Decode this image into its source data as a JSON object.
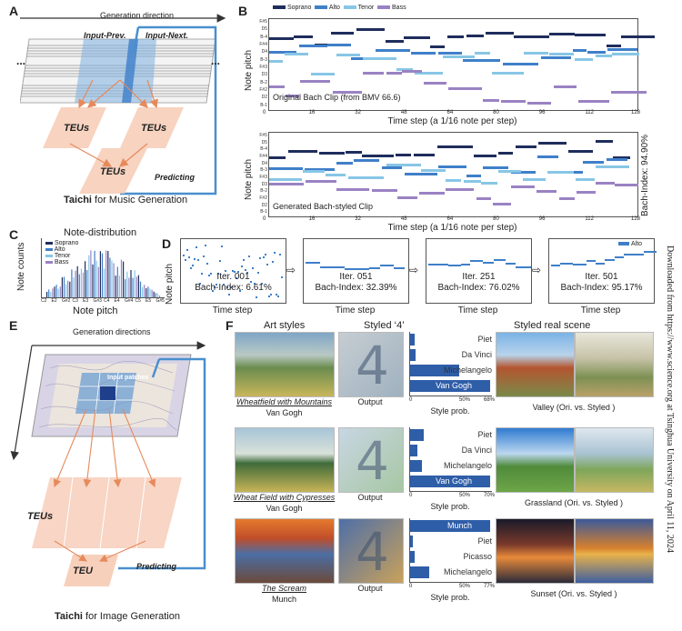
{
  "panels": {
    "A": {
      "label": "A",
      "generation_direction": "Generation direction",
      "input_prev": "Input-Prev.",
      "input_next": "Input-Next.",
      "teu_labels": [
        "TEUs",
        "TEUs",
        "TEUs"
      ],
      "predicting": "Predicting",
      "caption_bold": "Taichi",
      "caption_rest": " for Music Generation",
      "dots": "..."
    },
    "B": {
      "label": "B",
      "legend": [
        "Soprano",
        "Alto",
        "Tenor",
        "Bass"
      ],
      "plot1_caption": "Original Bach Clip (from BMV 66.6)",
      "plot2_caption": "Generated Bach-styled Clip",
      "xlabel": "Time step (a 1/16 note per step)",
      "ylabel": "Note pitch",
      "xticks1": [
        "0",
        "16",
        "32",
        "48",
        "64",
        "80",
        "96",
        "112",
        "128"
      ],
      "xticks2": [
        "0",
        "16",
        "32",
        "48",
        "64",
        "80",
        "96",
        "112",
        "128"
      ],
      "yticks": [
        "F#5",
        "D5",
        "B-4",
        "F#4",
        "D4",
        "B-3",
        "F#3",
        "D3",
        "B-2",
        "F#2",
        "D2",
        "B-1"
      ],
      "bach_index": "Bach-Index: 94.90%"
    },
    "C": {
      "label": "C",
      "title": "Note-distribution",
      "xlabel": "Note pitch",
      "ylabel": "Note counts",
      "legend": [
        "Soprano",
        "Alto",
        "Tenor",
        "Bass"
      ],
      "xticks": [
        "C2",
        "E2",
        "G#2",
        "C3",
        "E3",
        "G#3",
        "C4",
        "E4",
        "G#4",
        "C5",
        "E5",
        "G#5"
      ]
    },
    "D": {
      "label": "D",
      "ylabel": "Note pitch",
      "legend": "Alto",
      "xlabel": "Time step",
      "iterations": [
        {
          "iter": "Iter. 001",
          "bach": "Bach-Index: 6.61%"
        },
        {
          "iter": "Iter. 051",
          "bach": "Bach-Index: 32.39%"
        },
        {
          "iter": "Iter. 251",
          "bach": "Bach-Index: 76.02%"
        },
        {
          "iter": "Iter. 501",
          "bach": "Bach-Index: 95.17%"
        }
      ]
    },
    "E": {
      "label": "E",
      "generation_directions": "Generation directions",
      "input_patches": "Input patches",
      "teus": "TEUs",
      "teu": "TEU",
      "predicting": "Predicting",
      "caption_bold": "Taichi",
      "caption_rest": " for Image Generation"
    },
    "F": {
      "label": "F",
      "col_art": "Art styles",
      "col_four": "Styled ‘4’",
      "col_real": "Styled real scene",
      "rows": [
        {
          "art_title": "Wheatfield with Mountains",
          "artist": "Van Gogh",
          "output": "Output",
          "prob_labels": [
            "Piet",
            "Da Vinci",
            "Michelangelo",
            "Van Gogh"
          ],
          "probs": [
            0.04,
            0.05,
            0.42,
            0.68
          ],
          "axis_ticks": [
            "0",
            "50%",
            "68%"
          ],
          "axis_title": "Style prob.",
          "scene": "Valley (Ori. vs. Styled )"
        },
        {
          "art_title": "Wheat Field with Cypresses",
          "artist": "Van Gogh",
          "output": "Output",
          "prob_labels": [
            "Piet",
            "Da Vinci",
            "Michelangelo",
            "Van Gogh"
          ],
          "probs": [
            0.12,
            0.06,
            0.1,
            0.7
          ],
          "axis_ticks": [
            "0",
            "50%",
            "70%"
          ],
          "axis_title": "Style prob.",
          "scene": "Grassland (Ori. vs. Styled )"
        },
        {
          "art_title": "The Scream",
          "artist": "Munch",
          "output": "Output",
          "prob_labels": [
            "Munch",
            "Piet",
            "Picasso",
            "Michelangelo"
          ],
          "probs": [
            0.77,
            0.03,
            0.04,
            0.18
          ],
          "axis_ticks": [
            "0",
            "50%",
            "77%"
          ],
          "axis_title": "Style prob.",
          "scene": "Sunset (Ori. vs. Styled )"
        }
      ]
    }
  },
  "side_note": "Downloaded from https://www.science.org at Tsinghua University on April 11, 2024",
  "colors": {
    "soprano": "#1f2d5c",
    "alto": "#3f7fc9",
    "tenor": "#88c6e6",
    "bass": "#9a82c3",
    "salmon": "#f6cbb5",
    "frame": "#4a8fce"
  }
}
